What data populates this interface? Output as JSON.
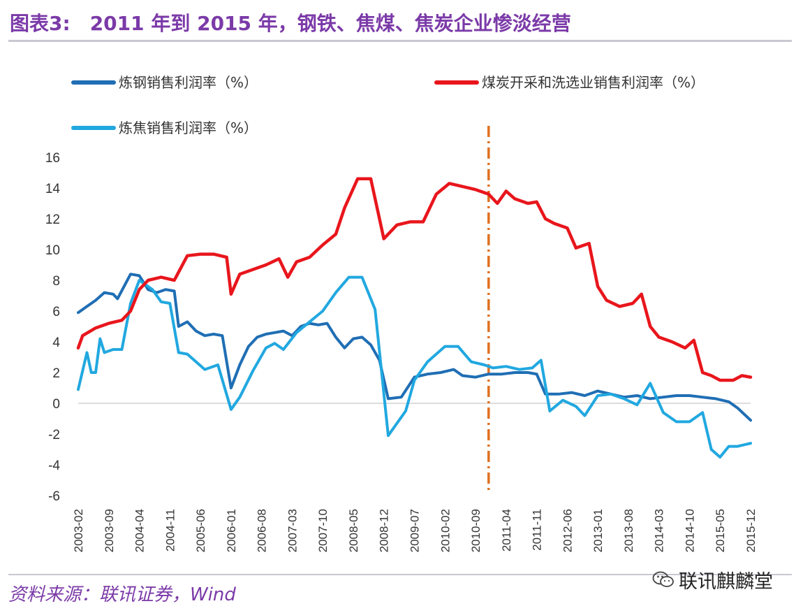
{
  "header": {
    "label": "图表3:",
    "text": "2011 年到 2015 年，钢铁、焦煤、焦炭企业惨淡经营"
  },
  "source": "资料来源：联讯证券，Wind",
  "watermark": "联讯麒麟堂",
  "colors": {
    "steel": "#1f6eb4",
    "coal": "#e8161c",
    "coke": "#21a8e0",
    "marker": "#e07020",
    "title": "#7b3aa8"
  },
  "chart_data": {
    "type": "line",
    "title": "2011 年到 2015 年，钢铁、焦煤、焦炭企业惨淡经营",
    "xlabel": "",
    "ylabel": "",
    "ylim": [
      -6,
      16
    ],
    "yticks": [
      16,
      14,
      12,
      10,
      8,
      6,
      4,
      2,
      0,
      -2,
      -4,
      -6
    ],
    "x_range": [
      "2003-02",
      "2015-12"
    ],
    "x_ticks": [
      "2003-02",
      "2003-09",
      "2004-04",
      "2004-11",
      "2005-06",
      "2006-01",
      "2006-08",
      "2007-03",
      "2007-10",
      "2008-05",
      "2008-12",
      "2009-07",
      "2010-02",
      "2010-09",
      "2011-04",
      "2011-11",
      "2012-06",
      "2013-01",
      "2013-08",
      "2014-03",
      "2014-10",
      "2015-05",
      "2015-12"
    ],
    "vertical_marker": "2010-12",
    "legend_position": "top",
    "series": [
      {
        "name": "炼钢销售利润率（%）",
        "key": "steel",
        "points": [
          [
            "2003-02",
            5.9
          ],
          [
            "2003-04",
            6.3
          ],
          [
            "2003-06",
            6.7
          ],
          [
            "2003-08",
            7.2
          ],
          [
            "2003-10",
            7.1
          ],
          [
            "2003-11",
            6.8
          ],
          [
            "2004-02",
            8.4
          ],
          [
            "2004-04",
            8.3
          ],
          [
            "2004-06",
            7.4
          ],
          [
            "2004-08",
            7.2
          ],
          [
            "2004-10",
            7.4
          ],
          [
            "2004-12",
            7.3
          ],
          [
            "2005-01",
            5.0
          ],
          [
            "2005-03",
            5.3
          ],
          [
            "2005-05",
            4.7
          ],
          [
            "2005-07",
            4.4
          ],
          [
            "2005-09",
            4.5
          ],
          [
            "2005-11",
            4.4
          ],
          [
            "2006-01",
            1.0
          ],
          [
            "2006-03",
            2.5
          ],
          [
            "2006-05",
            3.7
          ],
          [
            "2006-07",
            4.3
          ],
          [
            "2006-09",
            4.5
          ],
          [
            "2006-11",
            4.6
          ],
          [
            "2007-01",
            4.7
          ],
          [
            "2007-03",
            4.4
          ],
          [
            "2007-05",
            5.0
          ],
          [
            "2007-07",
            5.2
          ],
          [
            "2007-09",
            5.1
          ],
          [
            "2007-11",
            5.2
          ],
          [
            "2008-01",
            4.3
          ],
          [
            "2008-03",
            3.6
          ],
          [
            "2008-05",
            4.2
          ],
          [
            "2008-07",
            4.3
          ],
          [
            "2008-09",
            3.8
          ],
          [
            "2008-11",
            2.8
          ],
          [
            "2009-01",
            0.3
          ],
          [
            "2009-04",
            0.4
          ],
          [
            "2009-07",
            1.7
          ],
          [
            "2009-10",
            1.9
          ],
          [
            "2010-01",
            2.0
          ],
          [
            "2010-04",
            2.2
          ],
          [
            "2010-06",
            1.8
          ],
          [
            "2010-09",
            1.7
          ],
          [
            "2010-12",
            1.9
          ],
          [
            "2011-03",
            1.9
          ],
          [
            "2011-06",
            2.0
          ],
          [
            "2011-09",
            2.0
          ],
          [
            "2011-11",
            1.9
          ],
          [
            "2012-01",
            0.6
          ],
          [
            "2012-04",
            0.6
          ],
          [
            "2012-07",
            0.7
          ],
          [
            "2012-10",
            0.5
          ],
          [
            "2013-01",
            0.8
          ],
          [
            "2013-04",
            0.6
          ],
          [
            "2013-07",
            0.4
          ],
          [
            "2013-10",
            0.5
          ],
          [
            "2014-01",
            0.3
          ],
          [
            "2014-04",
            0.4
          ],
          [
            "2014-07",
            0.5
          ],
          [
            "2014-10",
            0.5
          ],
          [
            "2015-01",
            0.4
          ],
          [
            "2015-04",
            0.3
          ],
          [
            "2015-07",
            0.1
          ],
          [
            "2015-09",
            -0.3
          ],
          [
            "2015-12",
            -1.1
          ]
        ]
      },
      {
        "name": "煤炭开采和洗选业销售利润率（%）",
        "key": "coal",
        "points": [
          [
            "2003-02",
            3.6
          ],
          [
            "2003-03",
            4.4
          ],
          [
            "2003-06",
            4.9
          ],
          [
            "2003-09",
            5.2
          ],
          [
            "2003-12",
            5.4
          ],
          [
            "2004-02",
            6.0
          ],
          [
            "2004-04",
            7.4
          ],
          [
            "2004-06",
            8.0
          ],
          [
            "2004-09",
            8.2
          ],
          [
            "2004-12",
            8.0
          ],
          [
            "2005-03",
            9.6
          ],
          [
            "2005-06",
            9.7
          ],
          [
            "2005-09",
            9.7
          ],
          [
            "2005-12",
            9.5
          ],
          [
            "2006-01",
            7.1
          ],
          [
            "2006-03",
            8.4
          ],
          [
            "2006-06",
            8.7
          ],
          [
            "2006-09",
            9.0
          ],
          [
            "2006-12",
            9.4
          ],
          [
            "2007-02",
            8.2
          ],
          [
            "2007-04",
            9.2
          ],
          [
            "2007-07",
            9.5
          ],
          [
            "2007-10",
            10.3
          ],
          [
            "2008-01",
            11.0
          ],
          [
            "2008-03",
            12.7
          ],
          [
            "2008-06",
            14.6
          ],
          [
            "2008-09",
            14.6
          ],
          [
            "2008-12",
            10.7
          ],
          [
            "2009-03",
            11.6
          ],
          [
            "2009-06",
            11.8
          ],
          [
            "2009-09",
            11.8
          ],
          [
            "2009-12",
            13.6
          ],
          [
            "2010-03",
            14.3
          ],
          [
            "2010-06",
            14.1
          ],
          [
            "2010-09",
            13.9
          ],
          [
            "2010-12",
            13.6
          ],
          [
            "2011-02",
            13.0
          ],
          [
            "2011-04",
            13.8
          ],
          [
            "2011-06",
            13.3
          ],
          [
            "2011-09",
            13.0
          ],
          [
            "2011-11",
            13.1
          ],
          [
            "2012-01",
            12.0
          ],
          [
            "2012-03",
            11.7
          ],
          [
            "2012-06",
            11.4
          ],
          [
            "2012-08",
            10.1
          ],
          [
            "2012-11",
            10.4
          ],
          [
            "2013-01",
            7.6
          ],
          [
            "2013-03",
            6.7
          ],
          [
            "2013-06",
            6.3
          ],
          [
            "2013-09",
            6.5
          ],
          [
            "2013-11",
            7.1
          ],
          [
            "2014-01",
            5.0
          ],
          [
            "2014-03",
            4.3
          ],
          [
            "2014-06",
            4.0
          ],
          [
            "2014-09",
            3.6
          ],
          [
            "2014-11",
            4.1
          ],
          [
            "2015-01",
            2.0
          ],
          [
            "2015-03",
            1.8
          ],
          [
            "2015-05",
            1.5
          ],
          [
            "2015-08",
            1.5
          ],
          [
            "2015-10",
            1.8
          ],
          [
            "2015-12",
            1.7
          ]
        ]
      },
      {
        "name": "炼焦销售利润率（%）",
        "key": "coke",
        "points": [
          [
            "2003-02",
            0.9
          ],
          [
            "2003-04",
            3.3
          ],
          [
            "2003-05",
            2.0
          ],
          [
            "2003-06",
            2.0
          ],
          [
            "2003-07",
            4.2
          ],
          [
            "2003-08",
            3.3
          ],
          [
            "2003-10",
            3.5
          ],
          [
            "2003-12",
            3.5
          ],
          [
            "2004-02",
            6.5
          ],
          [
            "2004-04",
            8.0
          ],
          [
            "2004-07",
            7.4
          ],
          [
            "2004-09",
            6.6
          ],
          [
            "2004-11",
            6.5
          ],
          [
            "2005-01",
            3.3
          ],
          [
            "2005-03",
            3.2
          ],
          [
            "2005-05",
            2.7
          ],
          [
            "2005-07",
            2.2
          ],
          [
            "2005-10",
            2.5
          ],
          [
            "2006-01",
            -0.4
          ],
          [
            "2006-03",
            0.4
          ],
          [
            "2006-06",
            2.1
          ],
          [
            "2006-09",
            3.6
          ],
          [
            "2006-11",
            3.9
          ],
          [
            "2007-01",
            3.5
          ],
          [
            "2007-04",
            4.6
          ],
          [
            "2007-07",
            5.3
          ],
          [
            "2007-10",
            6.0
          ],
          [
            "2008-01",
            7.2
          ],
          [
            "2008-04",
            8.2
          ],
          [
            "2008-07",
            8.2
          ],
          [
            "2008-10",
            6.1
          ],
          [
            "2009-01",
            -2.1
          ],
          [
            "2009-05",
            -0.5
          ],
          [
            "2009-07",
            1.5
          ],
          [
            "2009-10",
            2.7
          ],
          [
            "2010-02",
            3.7
          ],
          [
            "2010-05",
            3.7
          ],
          [
            "2010-08",
            2.7
          ],
          [
            "2010-11",
            2.5
          ],
          [
            "2011-01",
            2.3
          ],
          [
            "2011-04",
            2.4
          ],
          [
            "2011-07",
            2.2
          ],
          [
            "2011-10",
            2.3
          ],
          [
            "2011-12",
            2.8
          ],
          [
            "2012-02",
            -0.5
          ],
          [
            "2012-05",
            0.2
          ],
          [
            "2012-08",
            -0.2
          ],
          [
            "2012-10",
            -0.8
          ],
          [
            "2013-01",
            0.5
          ],
          [
            "2013-04",
            0.6
          ],
          [
            "2013-07",
            0.3
          ],
          [
            "2013-10",
            -0.1
          ],
          [
            "2014-01",
            1.3
          ],
          [
            "2014-04",
            -0.6
          ],
          [
            "2014-07",
            -1.2
          ],
          [
            "2014-10",
            -1.2
          ],
          [
            "2015-01",
            -0.6
          ],
          [
            "2015-03",
            -3.0
          ],
          [
            "2015-05",
            -3.5
          ],
          [
            "2015-07",
            -2.8
          ],
          [
            "2015-09",
            -2.8
          ],
          [
            "2015-12",
            -2.6
          ]
        ]
      }
    ]
  }
}
